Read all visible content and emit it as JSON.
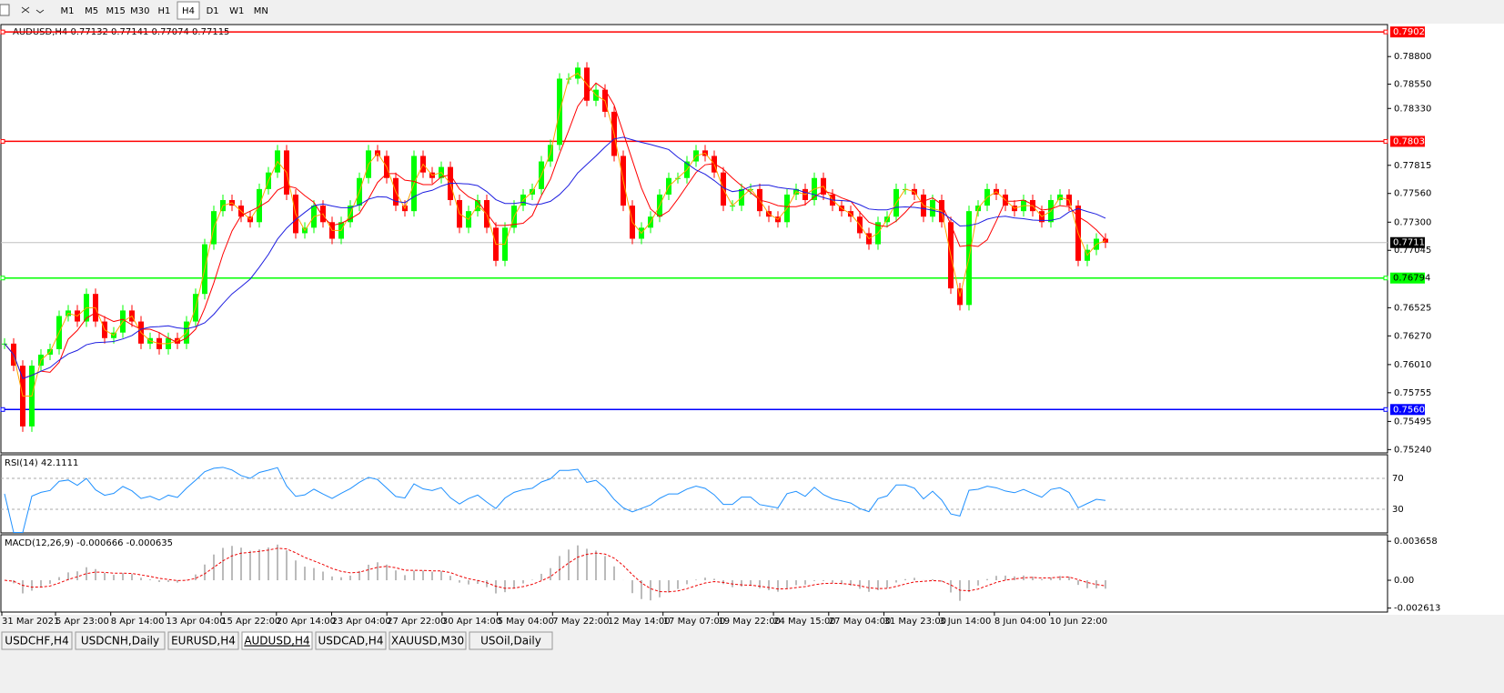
{
  "toolbar": {
    "timeframes": [
      "M1",
      "M5",
      "M15",
      "M30",
      "H1",
      "H4",
      "D1",
      "W1",
      "MN"
    ],
    "active": 5
  },
  "chart_data": {
    "type": "candlestick",
    "title": "AUDUSD,H4  0.77132 0.77141 0.77074 0.77115",
    "up_color": "#00ff00",
    "down_color": "#ff0000",
    "values": [
      0.762,
      0.76,
      0.7545,
      0.76,
      0.761,
      0.7615,
      0.7645,
      0.765,
      0.764,
      0.7665,
      0.764,
      0.7625,
      0.763,
      0.765,
      0.764,
      0.762,
      0.7625,
      0.7615,
      0.7625,
      0.762,
      0.764,
      0.7665,
      0.771,
      0.774,
      0.775,
      0.7745,
      0.7735,
      0.773,
      0.776,
      0.7775,
      0.7795,
      0.7755,
      0.772,
      0.7725,
      0.7745,
      0.773,
      0.7715,
      0.773,
      0.7745,
      0.777,
      0.7795,
      0.779,
      0.777,
      0.7745,
      0.774,
      0.779,
      0.7775,
      0.777,
      0.778,
      0.775,
      0.7725,
      0.774,
      0.775,
      0.7725,
      0.7695,
      0.7725,
      0.7745,
      0.7755,
      0.776,
      0.7785,
      0.78,
      0.786,
      0.786,
      0.787,
      0.784,
      0.785,
      0.783,
      0.779,
      0.7745,
      0.7715,
      0.7725,
      0.7735,
      0.7755,
      0.777,
      0.777,
      0.7785,
      0.7795,
      0.779,
      0.7775,
      0.7745,
      0.7745,
      0.776,
      0.776,
      0.774,
      0.7735,
      0.773,
      0.7755,
      0.776,
      0.775,
      0.777,
      0.7755,
      0.7745,
      0.774,
      0.7735,
      0.772,
      0.771,
      0.773,
      0.7735,
      0.776,
      0.776,
      0.7755,
      0.7735,
      0.775,
      0.773,
      0.767,
      0.7655,
      0.774,
      0.7745,
      0.776,
      0.7755,
      0.7745,
      0.774,
      0.775,
      0.774,
      0.773,
      0.775,
      0.7755,
      0.7745,
      0.7695,
      0.7705,
      0.7715,
      0.77115
    ],
    "ylim": [
      0.7521,
      0.7909
    ],
    "yticks": [
      {
        "value": 0.788,
        "label": "0.78800"
      },
      {
        "value": 0.7855,
        "label": "0.78550"
      },
      {
        "value": 0.7833,
        "label": "0.78330"
      },
      {
        "value": 0.77815,
        "label": "0.77815"
      },
      {
        "value": 0.7756,
        "label": "0.77560"
      },
      {
        "value": 0.773,
        "label": "0.77300"
      },
      {
        "value": 0.77045,
        "label": "0.77045"
      },
      {
        "value": 0.76525,
        "label": "0.76525"
      },
      {
        "value": 0.7627,
        "label": "0.76270"
      },
      {
        "value": 0.7601,
        "label": "0.76010"
      },
      {
        "value": 0.75755,
        "label": "0.75755"
      },
      {
        "value": 0.75495,
        "label": "0.75495"
      },
      {
        "value": 0.7524,
        "label": "0.75240"
      }
    ],
    "levels": [
      {
        "value": 0.79023,
        "label": "0.79023",
        "color": "#ff0000"
      },
      {
        "value": 0.78032,
        "label": "0.78032",
        "color": "#ff0000"
      },
      {
        "value": 0.76794,
        "label": "0.76794",
        "color": "#00ff00"
      },
      {
        "value": 0.75603,
        "label": "0.75603",
        "color": "#0000ff"
      }
    ],
    "current": {
      "value": 0.77115,
      "label": "0.77115"
    },
    "x_labels": [
      "31 Mar 2021",
      "5 Apr 23:00",
      "8 Apr 14:00",
      "13 Apr 04:00",
      "15 Apr 22:00",
      "20 Apr 14:00",
      "23 Apr 04:00",
      "27 Apr 22:00",
      "30 Apr 14:00",
      "5 May 04:00",
      "7 May 22:00",
      "12 May 14:00",
      "17 May 07:00",
      "19 May 22:00",
      "24 May 15:00",
      "27 May 04:00",
      "31 May 23:00",
      "3 Jun 14:00",
      "8 Jun 04:00",
      "10 Jun 22:00"
    ],
    "rsi": {
      "title": "RSI(14) 42.1111",
      "ylim": [
        3,
        97
      ],
      "yticks": [
        70,
        30
      ],
      "color": "#1e90ff"
    },
    "macd": {
      "title": "MACD(12,26,9) -0.000666 -0.000635",
      "ylim": [
        -0.0029,
        0.0041
      ],
      "yticks": [
        {
          "value": 0.003658,
          "label": "0.003658"
        },
        {
          "value": 0,
          "label": "0.00"
        },
        {
          "value": -0.002613,
          "label": "-0.002613"
        }
      ]
    }
  },
  "tabs": [
    "USDCHF,H4",
    "USDCNH,Daily",
    "EURUSD,H4",
    "AUDUSD,H4",
    "USDCAD,H4",
    "XAUUSD,M30",
    "USOil,Daily"
  ],
  "active_tab": 3
}
